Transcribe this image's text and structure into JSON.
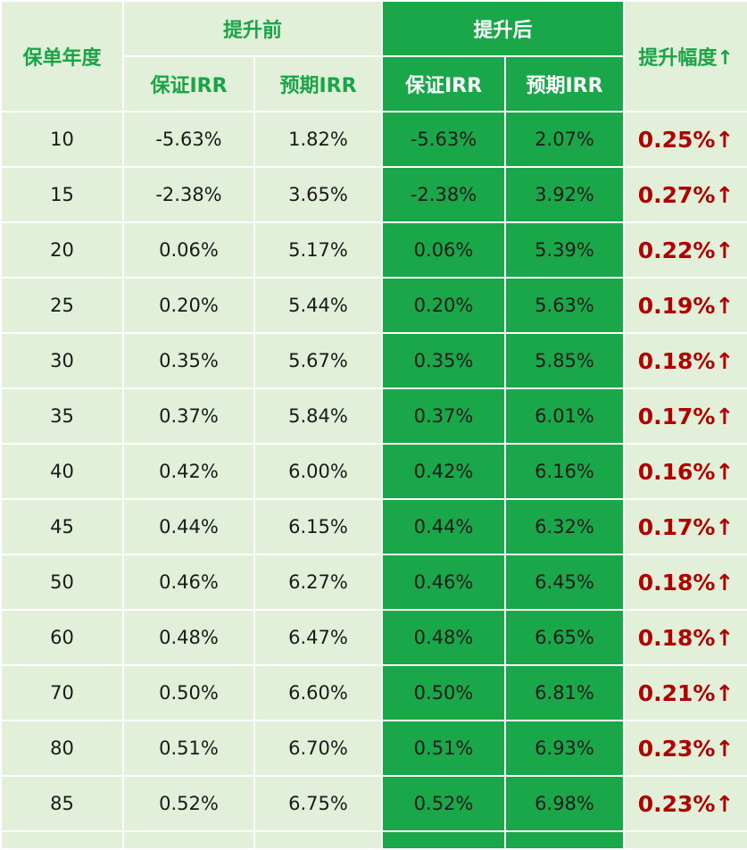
{
  "headers": {
    "year": "保单年度",
    "before": "提升前",
    "after": "提升后",
    "increase": "提升幅度↑",
    "guaranteed_irr": "保证IRR",
    "expected_irr": "预期IRR"
  },
  "rows": [
    {
      "year": "10",
      "before_guaranteed": "-5.63%",
      "before_expected": "1.82%",
      "after_guaranteed": "-5.63%",
      "after_expected": "2.07%",
      "delta": "0.25%↑"
    },
    {
      "year": "15",
      "before_guaranteed": "-2.38%",
      "before_expected": "3.65%",
      "after_guaranteed": "-2.38%",
      "after_expected": "3.92%",
      "delta": "0.27%↑"
    },
    {
      "year": "20",
      "before_guaranteed": "0.06%",
      "before_expected": "5.17%",
      "after_guaranteed": "0.06%",
      "after_expected": "5.39%",
      "delta": "0.22%↑"
    },
    {
      "year": "25",
      "before_guaranteed": "0.20%",
      "before_expected": "5.44%",
      "after_guaranteed": "0.20%",
      "after_expected": "5.63%",
      "delta": "0.19%↑"
    },
    {
      "year": "30",
      "before_guaranteed": "0.35%",
      "before_expected": "5.67%",
      "after_guaranteed": "0.35%",
      "after_expected": "5.85%",
      "delta": "0.18%↑"
    },
    {
      "year": "35",
      "before_guaranteed": "0.37%",
      "before_expected": "5.84%",
      "after_guaranteed": "0.37%",
      "after_expected": "6.01%",
      "delta": "0.17%↑"
    },
    {
      "year": "40",
      "before_guaranteed": "0.42%",
      "before_expected": "6.00%",
      "after_guaranteed": "0.42%",
      "after_expected": "6.16%",
      "delta": "0.16%↑"
    },
    {
      "year": "45",
      "before_guaranteed": "0.44%",
      "before_expected": "6.15%",
      "after_guaranteed": "0.44%",
      "after_expected": "6.32%",
      "delta": "0.17%↑"
    },
    {
      "year": "50",
      "before_guaranteed": "0.46%",
      "before_expected": "6.27%",
      "after_guaranteed": "0.46%",
      "after_expected": "6.45%",
      "delta": "0.18%↑"
    },
    {
      "year": "60",
      "before_guaranteed": "0.48%",
      "before_expected": "6.47%",
      "after_guaranteed": "0.48%",
      "after_expected": "6.65%",
      "delta": "0.18%↑"
    },
    {
      "year": "70",
      "before_guaranteed": "0.50%",
      "before_expected": "6.60%",
      "after_guaranteed": "0.50%",
      "after_expected": "6.81%",
      "delta": "0.21%↑"
    },
    {
      "year": "80",
      "before_guaranteed": "0.51%",
      "before_expected": "6.70%",
      "after_guaranteed": "0.51%",
      "after_expected": "6.93%",
      "delta": "0.23%↑"
    },
    {
      "year": "85",
      "before_guaranteed": "0.52%",
      "before_expected": "6.75%",
      "after_guaranteed": "0.52%",
      "after_expected": "6.98%",
      "delta": "0.23%↑"
    }
  ],
  "colors": {
    "light_bg": "#e2f0d9",
    "dark_bg": "#1aa74a",
    "header_text_green": "#18a548",
    "delta_text_red": "#b00000"
  }
}
